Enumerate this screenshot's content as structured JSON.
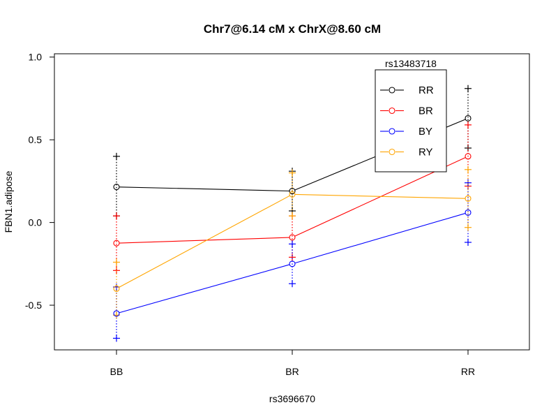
{
  "chart_data": {
    "type": "line",
    "title": "Chr7@6.14 cM x ChrX@8.60 cM",
    "xlabel": "rs3696670",
    "ylabel": "FBN1.adipose",
    "categories": [
      "BB",
      "BR",
      "RR"
    ],
    "ylim": [
      -0.77,
      1.02
    ],
    "yticks": [
      -0.5,
      0.0,
      0.5,
      1.0
    ],
    "ytick_labels": [
      "-0.5",
      "0.0",
      "0.5",
      "1.0"
    ],
    "grid": false,
    "legend": {
      "title": "rs13483718",
      "position": "top-right"
    },
    "series": [
      {
        "name": "RR",
        "color": "#000000",
        "values": [
          0.215,
          0.19,
          0.63
        ],
        "upper": [
          0.4,
          0.31,
          0.81
        ],
        "lower": [
          0.04,
          0.07,
          0.45
        ]
      },
      {
        "name": "BR",
        "color": "#ff0000",
        "values": [
          -0.125,
          -0.09,
          0.4
        ],
        "upper": [
          0.04,
          0.04,
          0.59
        ],
        "lower": [
          -0.29,
          -0.21,
          0.22
        ]
      },
      {
        "name": "BY",
        "color": "#0000ff",
        "values": [
          -0.55,
          -0.25,
          0.06
        ],
        "upper": [
          -0.39,
          -0.13,
          0.24
        ],
        "lower": [
          -0.7,
          -0.37,
          -0.12
        ]
      },
      {
        "name": "RY",
        "color": "#ffa500",
        "values": [
          -0.4,
          0.17,
          0.145
        ],
        "upper": [
          -0.24,
          0.3,
          0.32
        ],
        "lower": [
          -0.56,
          0.04,
          -0.03
        ]
      }
    ]
  }
}
